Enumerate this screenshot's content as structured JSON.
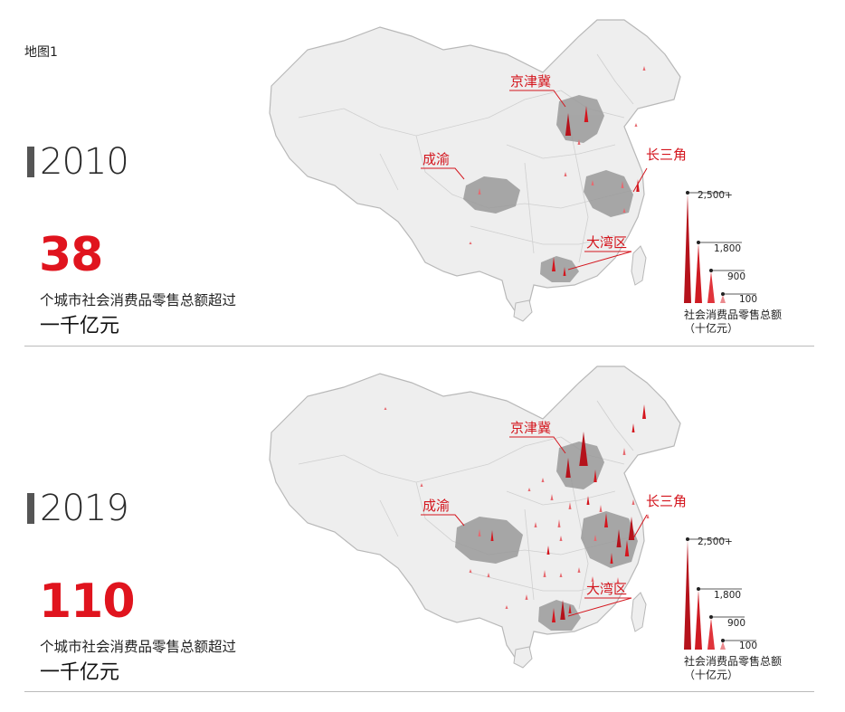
{
  "map_label": "地图1",
  "colors": {
    "accent": "#e0141e",
    "region_fill": "#9a9a9a",
    "land_fill": "#eeeeee",
    "border": "#b8b8b8"
  },
  "panels": [
    {
      "year": "2010",
      "count": "38",
      "desc_line1": "个城市社会消费品零售总额超过",
      "desc_line2": "一千亿元",
      "regions": {
        "jjj": "京津冀",
        "cy": "成渝",
        "csj": "长三角",
        "dwq": "大湾区"
      },
      "legend": {
        "title_line1": "社会消费品零售总额",
        "title_line2": "（十亿元）",
        "values": [
          "2,500+",
          "1,800",
          "900",
          "100"
        ]
      }
    },
    {
      "year": "2019",
      "count": "110",
      "desc_line1": "个城市社会消费品零售总额超过",
      "desc_line2": "一千亿元",
      "regions": {
        "jjj": "京津冀",
        "cy": "成渝",
        "csj": "长三角",
        "dwq": "大湾区"
      },
      "legend": {
        "title_line1": "社会消费品零售总额",
        "title_line2": "（十亿元）",
        "values": [
          "2,500+",
          "1,800",
          "900",
          "100"
        ]
      }
    }
  ]
}
